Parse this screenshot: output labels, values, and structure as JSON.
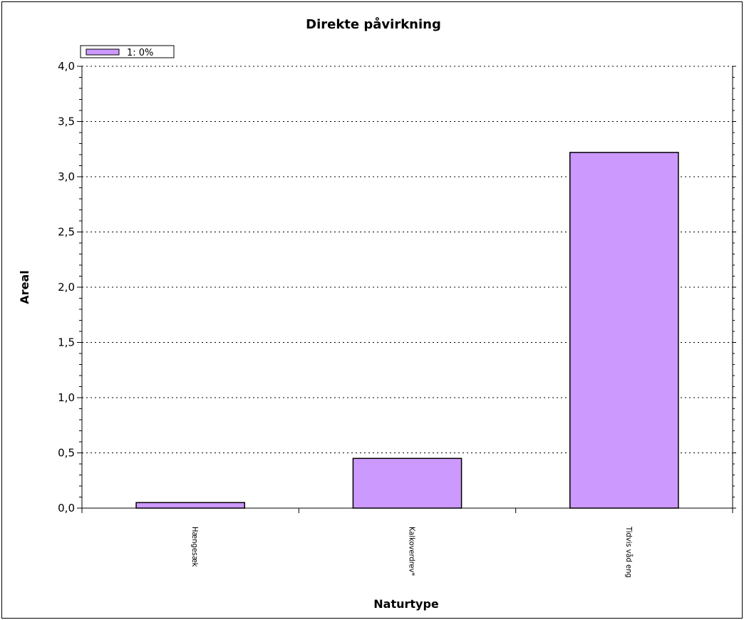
{
  "chart_data": {
    "type": "bar",
    "title": "Direkte påvirkning",
    "xlabel": "Naturtype",
    "ylabel": "Areal",
    "categories": [
      "Hængesæk",
      "Kalkoverdrev*",
      "Tidvis våd eng"
    ],
    "series": [
      {
        "name": "1: 0%",
        "values": [
          0.05,
          0.45,
          3.22
        ],
        "color": "#cc99ff"
      }
    ],
    "ylim": [
      0,
      4
    ],
    "yticks": [
      "0,0",
      "0,5",
      "1,0",
      "1,5",
      "2,0",
      "2,5",
      "3,0",
      "3,5",
      "4,0"
    ],
    "grid": true,
    "legend": "top-left"
  }
}
